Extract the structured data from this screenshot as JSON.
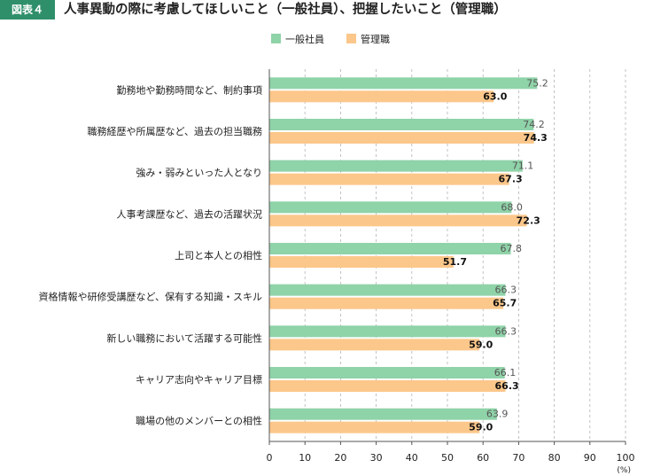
{
  "figure_label": "図表４",
  "title": "人事異動の際に考慮してほしいこと（一般社員）、把握したいこと（管理職）",
  "colors": {
    "general": "#8fd3a8",
    "manager": "#fcc78a",
    "badge": "#2f8f6b",
    "grid": "#b3b3b3",
    "axis": "#555555"
  },
  "chart_data": {
    "type": "bar",
    "orientation": "horizontal",
    "categories": [
      "勤務地や勤務時間など、制約事項",
      "職務経歴や所属歴など、過去の担当職務",
      "強み・弱みといった人となり",
      "人事考課歴など、過去の活躍状況",
      "上司と本人との相性",
      "資格情報や研修受講歴など、保有する知識・スキル",
      "新しい職務において活躍する可能性",
      "キャリア志向やキャリア目標",
      "職場の他のメンバーとの相性"
    ],
    "series": [
      {
        "name": "一般社員",
        "values": [
          75.2,
          74.2,
          71.1,
          68.0,
          67.8,
          66.3,
          66.3,
          66.1,
          63.9
        ]
      },
      {
        "name": "管理職",
        "values": [
          63.0,
          74.3,
          67.3,
          72.3,
          51.7,
          65.7,
          59.0,
          66.3,
          59.0
        ]
      }
    ],
    "xlim": [
      0,
      100
    ],
    "xticks": [
      0,
      10,
      20,
      30,
      40,
      50,
      60,
      70,
      80,
      90,
      100
    ],
    "xunit": "(%)",
    "legend_position": "top",
    "grid": "vertical dashed"
  }
}
